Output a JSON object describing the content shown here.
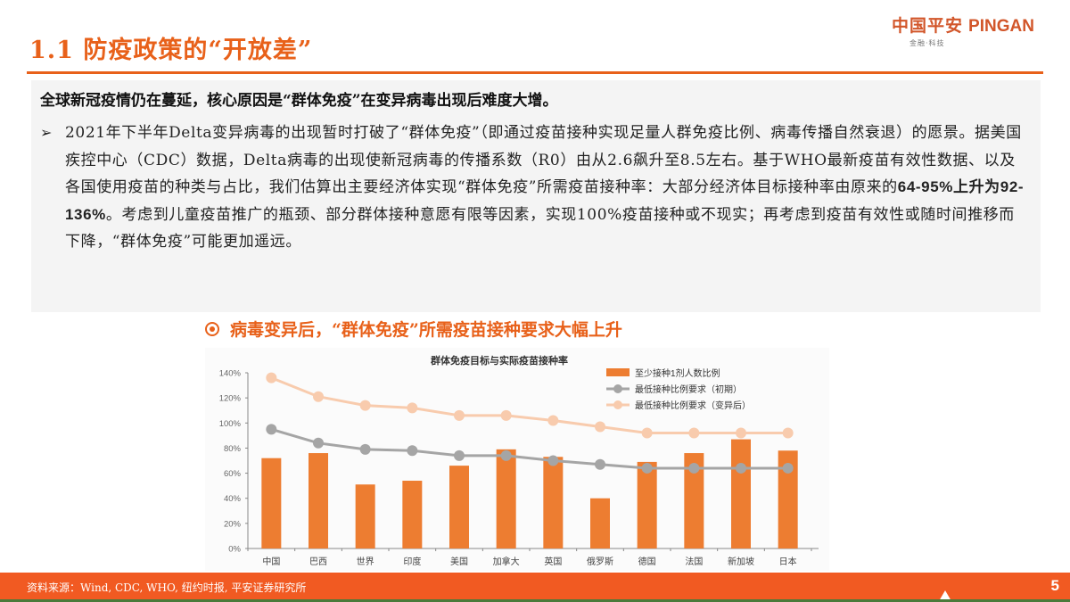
{
  "header": {
    "title": "1.1 防疫政策的“开放差”",
    "logo": {
      "cn": "中国平安",
      "en": "PINGAN",
      "sub": "金融·科技"
    }
  },
  "content": {
    "headline": "全球新冠疫情仍在蔓延，核心原因是“群体免疫”在变异病毒出现后难度大增。",
    "bullet_icon": "arrow-bullet-icon",
    "bullet": {
      "part1": "2021年下半年Delta变异病毒的出现暂时打破了“群体免疫”（即通过疫苗接种实现足量人群免疫比例、病毒传播自然衰退）的愿景。据美国疾控中心（CDC）数据，Delta病毒的出现使新冠病毒的传播系数（R0）由从2.6飙升至8.5左右。基于WHO最新疫苗有效性数据、以及各国使用疫苗的种类与占比，我们估算出主要经济体实现“群体免疫”所需疫苗接种率：大部分经济体目标接种率由原来的",
      "bold": "64-95%上升为92-136%",
      "part2": "。考虑到儿童疫苗推广的瓶颈、部分群体接种意愿有限等因素，实现100%疫苗接种或不现实；再考虑到疫苗有效性或随时间推移而下降，“群体免疫”可能更加遥远。"
    }
  },
  "chart_heading": "病毒变异后，“群体免疫”所需疫苗接种要求大幅上升",
  "chart_data": {
    "type": "bar",
    "title": "群体免疫目标与实际疫苗接种率",
    "xlabel": "",
    "ylabel": "",
    "ylim": [
      0,
      140
    ],
    "yticks": [
      "0%",
      "20%",
      "40%",
      "60%",
      "80%",
      "100%",
      "120%",
      "140%"
    ],
    "categories": [
      "中国",
      "巴西",
      "世界",
      "印度",
      "美国",
      "加拿大",
      "英国",
      "俄罗斯",
      "德国",
      "法国",
      "新加坡",
      "日本"
    ],
    "series": [
      {
        "name": "至少接种1剂人数比例",
        "type": "bar",
        "color": "#ed7d31",
        "values": [
          72,
          76,
          51,
          54,
          66,
          79,
          73,
          40,
          69,
          76,
          87,
          78
        ]
      },
      {
        "name": "最低接种比例要求（初期）",
        "type": "line",
        "color": "#a5a5a5",
        "values": [
          95,
          84,
          79,
          78,
          74,
          74,
          70,
          67,
          64,
          64,
          64,
          64
        ]
      },
      {
        "name": "最低接种比例要求（变异后）",
        "type": "line",
        "color": "#f8cbad",
        "values": [
          136,
          121,
          114,
          112,
          106,
          106,
          102,
          97,
          92,
          92,
          92,
          92
        ]
      }
    ],
    "legend_position": "top-right",
    "grid": false
  },
  "footer": {
    "source": "资料来源：Wind, CDC, WHO, 纽约时报, 平安证券研究所",
    "page_number": "5"
  },
  "colors": {
    "accent": "#e8611a",
    "footer": "#f15a22",
    "bar": "#ed7d31",
    "line_initial": "#a5a5a5",
    "line_variant": "#f8cbad"
  }
}
